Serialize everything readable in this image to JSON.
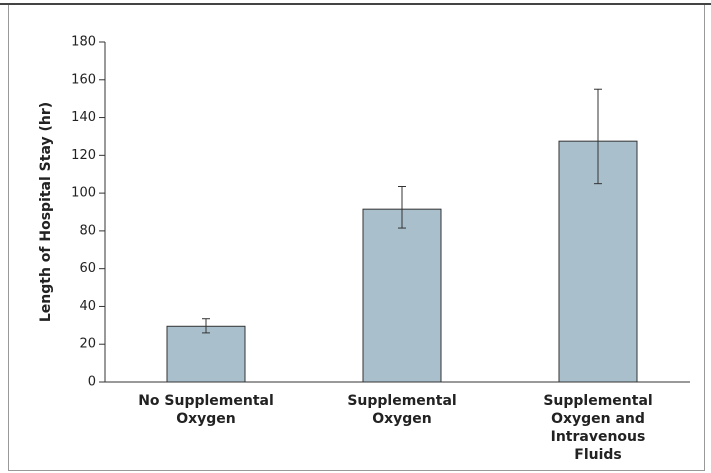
{
  "chart_data": {
    "type": "bar",
    "y_label": "Length of Hospital Stay (hr)",
    "categories": [
      "No Supplemental Oxygen",
      "Supplemental Oxygen",
      "Supplemental Oxygen and Intravenous Fluids"
    ],
    "values": [
      29.5,
      91.5,
      127.5
    ],
    "error_lower": [
      26,
      81.5,
      105
    ],
    "error_upper": [
      33.5,
      103.5,
      155
    ],
    "color": "#a9c0cc",
    "ylim": [
      0,
      180
    ],
    "yticks": [
      0,
      20,
      40,
      60,
      80,
      100,
      120,
      140,
      160,
      180
    ]
  }
}
